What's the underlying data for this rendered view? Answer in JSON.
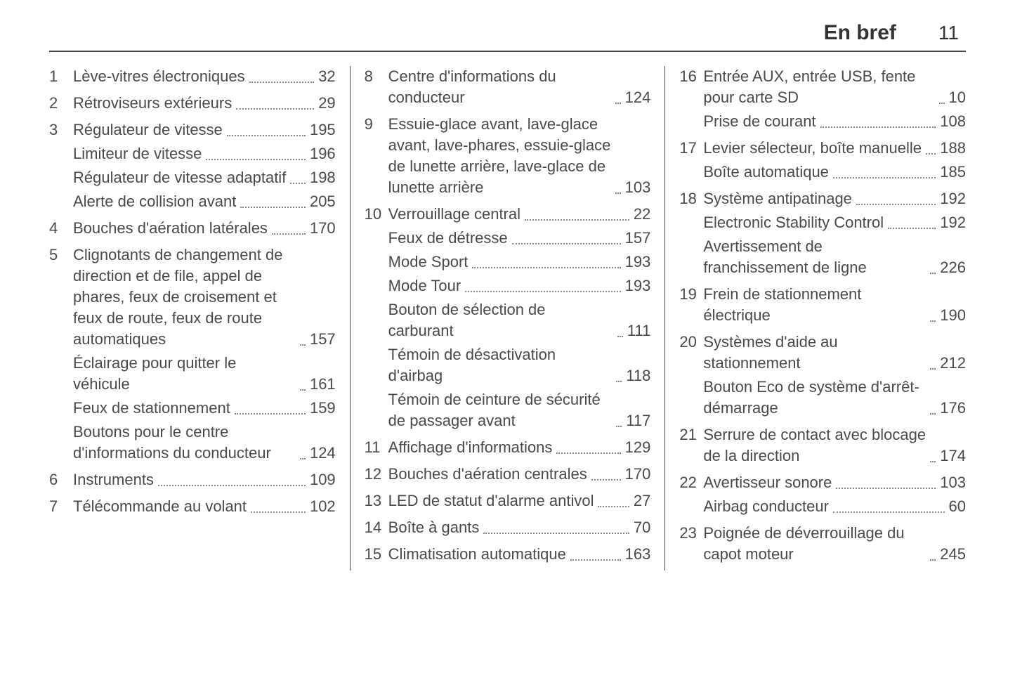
{
  "header": {
    "title": "En bref",
    "page_number": "11"
  },
  "columns": [
    [
      {
        "num": "1",
        "items": [
          {
            "label": "Lève-vitres électroniques",
            "page": "32"
          }
        ]
      },
      {
        "num": "2",
        "items": [
          {
            "label": "Rétroviseurs extérieurs",
            "page": "29"
          }
        ]
      },
      {
        "num": "3",
        "items": [
          {
            "label": "Régulateur de vitesse",
            "page": "195"
          },
          {
            "label": "Limiteur de vitesse",
            "page": "196"
          },
          {
            "label": "Régulateur de vitesse adaptatif",
            "page": "198"
          },
          {
            "label": "Alerte de collision avant",
            "page": "205"
          }
        ]
      },
      {
        "num": "4",
        "items": [
          {
            "label": "Bouches d'aération latérales",
            "page": "170"
          }
        ]
      },
      {
        "num": "5",
        "items": [
          {
            "label": "Clignotants de changement de direction et de file, appel de phares, feux de croisement et feux de route, feux de route automatiques",
            "page": "157"
          },
          {
            "label": "Éclairage pour quitter le véhicule",
            "page": "161"
          },
          {
            "label": "Feux de stationnement",
            "page": "159"
          },
          {
            "label": "Boutons pour le centre d'informations du conducteur",
            "page": "124"
          }
        ]
      },
      {
        "num": "6",
        "items": [
          {
            "label": "Instruments",
            "page": "109"
          }
        ]
      },
      {
        "num": "7",
        "items": [
          {
            "label": "Télécommande au volant",
            "page": "102"
          }
        ]
      }
    ],
    [
      {
        "num": "8",
        "items": [
          {
            "label": "Centre d'informations du conducteur",
            "page": "124"
          }
        ]
      },
      {
        "num": "9",
        "items": [
          {
            "label": "Essuie-glace avant, lave-glace avant, lave-phares, essuie-glace de lunette arrière, lave-glace de lunette arrière",
            "page": "103"
          }
        ]
      },
      {
        "num": "10",
        "items": [
          {
            "label": "Verrouillage central",
            "page": "22"
          },
          {
            "label": "Feux de détresse",
            "page": "157"
          },
          {
            "label": "Mode Sport",
            "page": "193"
          },
          {
            "label": "Mode Tour",
            "page": "193"
          },
          {
            "label": "Bouton de sélection de carburant",
            "page": "111"
          },
          {
            "label": "Témoin de désactivation d'airbag",
            "page": "118"
          },
          {
            "label": "Témoin de ceinture de sécurité de passager avant",
            "page": "117"
          }
        ]
      },
      {
        "num": "11",
        "items": [
          {
            "label": "Affichage d'informations",
            "page": "129"
          }
        ]
      },
      {
        "num": "12",
        "items": [
          {
            "label": "Bouches d'aération centrales",
            "page": "170"
          }
        ]
      },
      {
        "num": "13",
        "items": [
          {
            "label": "LED de statut d'alarme antivol",
            "page": "27"
          }
        ]
      },
      {
        "num": "14",
        "items": [
          {
            "label": "Boîte à gants",
            "page": "70"
          }
        ]
      },
      {
        "num": "15",
        "items": [
          {
            "label": "Climatisation automatique",
            "page": "163"
          }
        ]
      }
    ],
    [
      {
        "num": "16",
        "items": [
          {
            "label": "Entrée AUX, entrée USB, fente pour carte SD",
            "page": "10"
          },
          {
            "label": "Prise de courant",
            "page": "108"
          }
        ]
      },
      {
        "num": "17",
        "items": [
          {
            "label": "Levier sélecteur, boîte manuelle",
            "page": "188"
          },
          {
            "label": "Boîte automatique",
            "page": "185"
          }
        ]
      },
      {
        "num": "18",
        "items": [
          {
            "label": "Système antipatinage",
            "page": "192"
          },
          {
            "label": "Electronic Stability Control",
            "page": "192"
          },
          {
            "label": "Avertissement de franchissement de ligne",
            "page": "226"
          }
        ]
      },
      {
        "num": "19",
        "items": [
          {
            "label": "Frein de stationnement électrique",
            "page": "190"
          }
        ]
      },
      {
        "num": "20",
        "items": [
          {
            "label": "Systèmes d'aide au stationnement",
            "page": "212"
          },
          {
            "label": "Bouton Eco de système d'arrêt-démarrage",
            "page": "176"
          }
        ]
      },
      {
        "num": "21",
        "items": [
          {
            "label": "Serrure de contact avec blocage de la direction",
            "page": "174"
          }
        ]
      },
      {
        "num": "22",
        "items": [
          {
            "label": "Avertisseur sonore",
            "page": "103"
          },
          {
            "label": "Airbag conducteur",
            "page": "60"
          }
        ]
      },
      {
        "num": "23",
        "items": [
          {
            "label": "Poignée de déverrouillage du capot moteur",
            "page": "245"
          }
        ]
      }
    ]
  ]
}
